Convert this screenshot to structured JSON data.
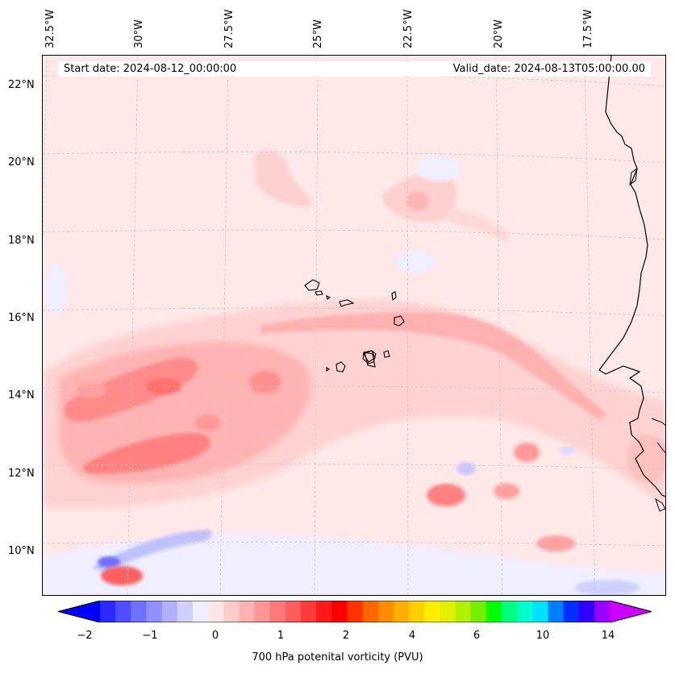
{
  "map": {
    "start_label": "Start date: 2024-08-12_00:00:00",
    "valid_label": "Valid_date: 2024-08-13T05:00:00.00",
    "longitude_labels": [
      "32.5°W",
      "30°W",
      "27.5°W",
      "25°W",
      "22.5°W",
      "20°W",
      "17.5°W"
    ],
    "latitude_labels": [
      "22°N",
      "20°N",
      "18°N",
      "16°N",
      "14°N",
      "12°N",
      "10°N"
    ],
    "field": "700 hPa potential vorticity",
    "colors": {
      "background": "#ffe8e8",
      "coastline": "#000000",
      "grid": "#bbbbbb"
    }
  },
  "colorbar": {
    "title": "700 hPa potenital vorticity (PVU)",
    "tick_labels": [
      "−2",
      "−1",
      "0",
      "1",
      "2",
      "4",
      "6",
      "10",
      "14"
    ],
    "colors": [
      "#0000ff",
      "#2a2aff",
      "#4f4fff",
      "#7070ff",
      "#9090ff",
      "#b0b0ff",
      "#d0d0ff",
      "#eeeeff",
      "#ffe6e6",
      "#ffcccc",
      "#ffb0b0",
      "#ff9595",
      "#ff7878",
      "#ff5c5c",
      "#ff3a3a",
      "#ff1a1a",
      "#ff0000",
      "#ff3300",
      "#ff6600",
      "#ff8c00",
      "#ffb000",
      "#ffd000",
      "#ffee00",
      "#e0f000",
      "#b0f000",
      "#70f000",
      "#00ff00",
      "#00ff80",
      "#00ffcc",
      "#00e0ff",
      "#0080ff",
      "#0030ff",
      "#3300ff",
      "#9900ff",
      "#cc00ff"
    ]
  }
}
